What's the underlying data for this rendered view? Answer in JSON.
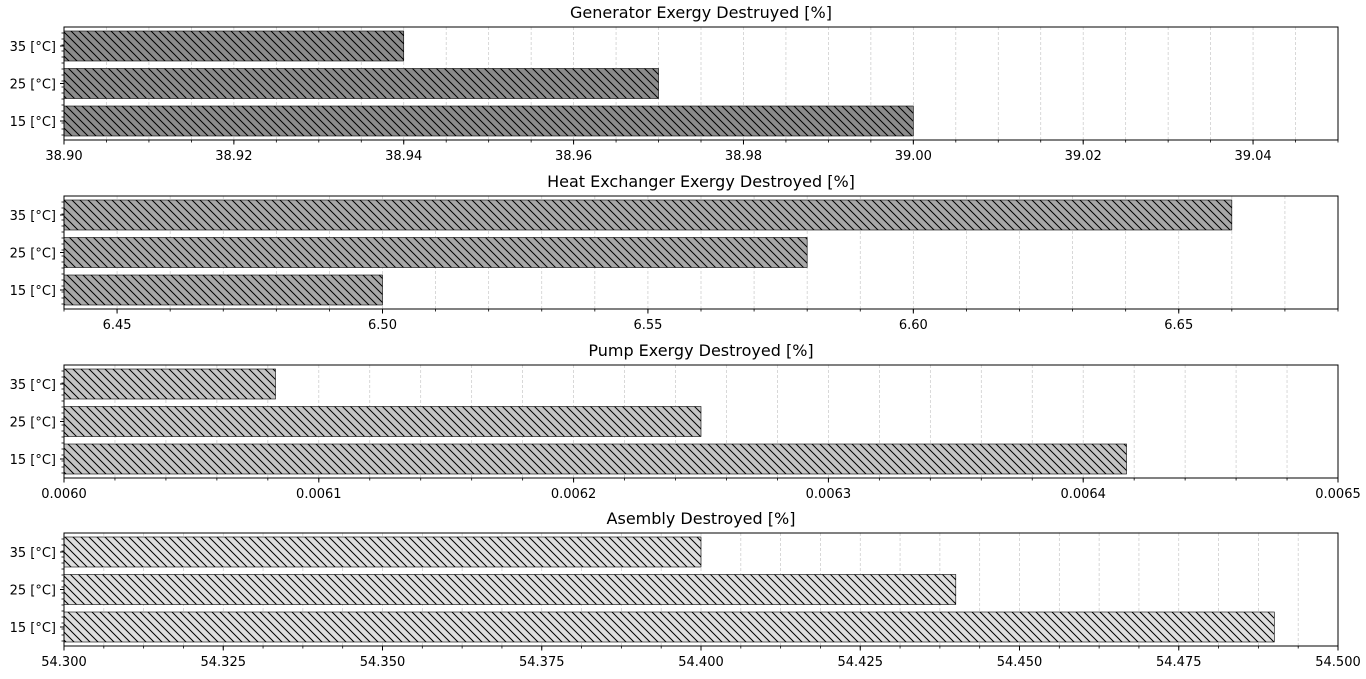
{
  "chart_data": [
    {
      "type": "bar",
      "orientation": "horizontal",
      "title": "Generator Exergy Destruyed [%]",
      "categories": [
        "15 [°C]",
        "25 [°C]",
        "35 [°C]"
      ],
      "values": [
        39.0,
        38.97,
        38.94
      ],
      "xlim": [
        38.9,
        39.05
      ],
      "xticks": [
        "38.90",
        "38.92",
        "38.94",
        "38.96",
        "38.98",
        "39.00",
        "39.02",
        "39.04"
      ],
      "xtick_values": [
        38.9,
        38.92,
        38.94,
        38.96,
        38.98,
        39.0,
        39.02,
        39.04
      ],
      "minor_step": 0.005,
      "grid": true,
      "bar_color": "#8c8c8c",
      "hatch": "\\\\"
    },
    {
      "type": "bar",
      "orientation": "horizontal",
      "title": "Heat Exchanger Exergy Destroyed [%]",
      "categories": [
        "15 [°C]",
        "25 [°C]",
        "35 [°C]"
      ],
      "values": [
        6.5,
        6.58,
        6.66
      ],
      "xlim": [
        6.44,
        6.68
      ],
      "xticks": [
        "6.45",
        "6.50",
        "6.55",
        "6.60",
        "6.65"
      ],
      "xtick_values": [
        6.45,
        6.5,
        6.55,
        6.6,
        6.65
      ],
      "minor_step": 0.01,
      "grid": true,
      "bar_color": "#a8a8a8",
      "hatch": "\\\\"
    },
    {
      "type": "bar",
      "orientation": "horizontal",
      "title": "Pump Exergy Destroyed [%]",
      "categories": [
        "15 [°C]",
        "25 [°C]",
        "35 [°C]"
      ],
      "values": [
        0.006417,
        0.00625,
        0.006083
      ],
      "xlim": [
        0.006,
        0.0065
      ],
      "xticks": [
        "0.0060",
        "0.0061",
        "0.0062",
        "0.0063",
        "0.0064",
        "0.0065"
      ],
      "xtick_values": [
        0.006,
        0.0061,
        0.0062,
        0.0063,
        0.0064,
        0.0065
      ],
      "minor_step": 2e-05,
      "grid": true,
      "bar_color": "#c4c4c4",
      "hatch": "\\\\"
    },
    {
      "type": "bar",
      "orientation": "horizontal",
      "title": "Asembly Destroyed [%]",
      "categories": [
        "15 [°C]",
        "25 [°C]",
        "35 [°C]"
      ],
      "values": [
        54.49,
        54.44,
        54.4
      ],
      "xlim": [
        54.3,
        54.5
      ],
      "xticks": [
        "54.300",
        "54.325",
        "54.350",
        "54.375",
        "54.400",
        "54.425",
        "54.450",
        "54.475",
        "54.500"
      ],
      "xtick_values": [
        54.3,
        54.325,
        54.35,
        54.375,
        54.4,
        54.425,
        54.45,
        54.475,
        54.5
      ],
      "minor_step": 0.00625,
      "grid": true,
      "bar_color": "#dedede",
      "hatch": "\\\\"
    }
  ]
}
